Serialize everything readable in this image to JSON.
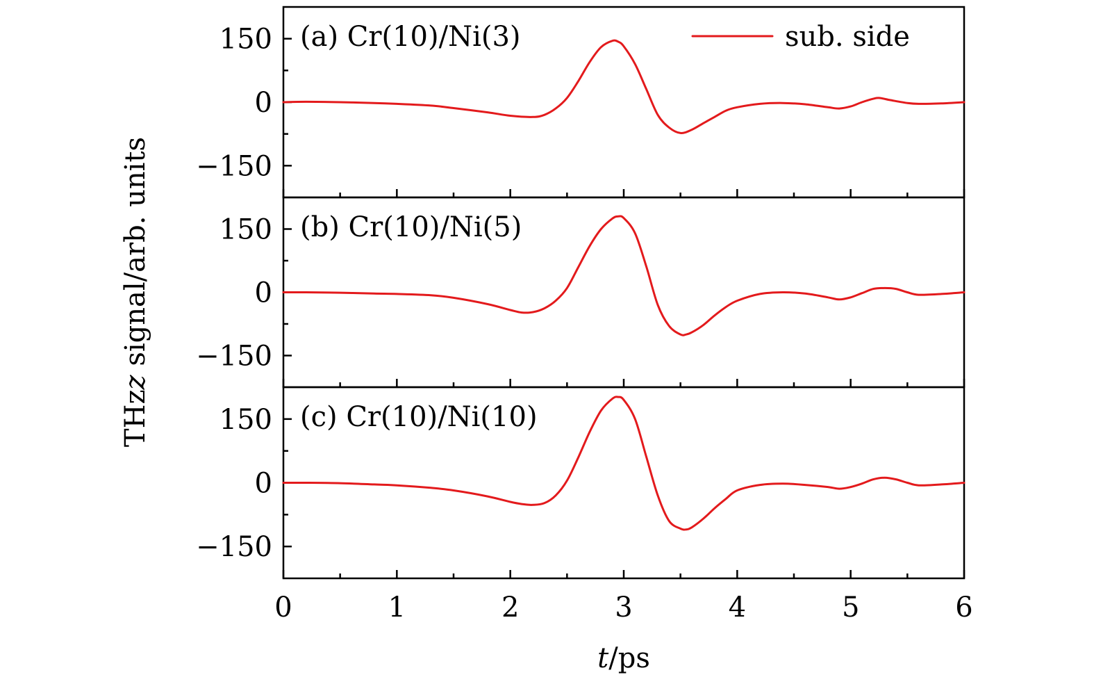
{
  "chart_data": {
    "type": "line",
    "xlabel_italic": "t",
    "xlabel_unit": "/ps",
    "ylabel": "THz signal/arb. units",
    "ylabel_italic": "z",
    "xlim": [
      0,
      6
    ],
    "ylim": [
      -225,
      225
    ],
    "x_ticks": [
      0,
      1,
      2,
      3,
      4,
      5,
      6
    ],
    "x_minor_ticks": [
      0.5,
      1.5,
      2.5,
      3.5,
      4.5,
      5.5
    ],
    "x_tick_labels": [
      "0",
      "1",
      "2",
      "3",
      "4",
      "5",
      "6"
    ],
    "y_ticks": [
      -150,
      0,
      150
    ],
    "y_tick_labels": [
      "−150",
      "0",
      "150"
    ],
    "y_minor_ticks": [
      -75,
      75
    ],
    "legend": {
      "position": "top-right",
      "label": "sub. side",
      "color": "#e31a1c"
    },
    "panels": [
      {
        "label": "(a) Cr(10)/Ni(3)",
        "series": [
          {
            "color": "#e31a1c",
            "x": [
              0,
              0.2,
              0.5,
              0.8,
              1.0,
              1.3,
              1.5,
              1.8,
              2.0,
              2.2,
              2.3,
              2.4,
              2.5,
              2.6,
              2.7,
              2.8,
              2.9,
              2.95,
              3.0,
              3.1,
              3.2,
              3.3,
              3.4,
              3.5,
              3.6,
              3.7,
              3.8,
              3.9,
              4.0,
              4.2,
              4.4,
              4.6,
              4.8,
              4.9,
              5.0,
              5.1,
              5.2,
              5.25,
              5.35,
              5.5,
              5.6,
              5.8,
              6.0
            ],
            "y": [
              0,
              1,
              0,
              -2,
              -4,
              -8,
              -14,
              -24,
              -32,
              -35,
              -30,
              -15,
              10,
              50,
              95,
              130,
              145,
              143,
              132,
              90,
              30,
              -30,
              -60,
              -73,
              -65,
              -50,
              -35,
              -20,
              -12,
              -4,
              -2,
              -5,
              -12,
              -15,
              -10,
              0,
              8,
              10,
              5,
              -2,
              -4,
              -3,
              0
            ]
          }
        ]
      },
      {
        "label": "(b) Cr(10)/Ni(5)",
        "series": [
          {
            "color": "#e31a1c",
            "x": [
              0,
              0.2,
              0.5,
              0.8,
              1.0,
              1.3,
              1.5,
              1.8,
              2.0,
              2.1,
              2.2,
              2.3,
              2.4,
              2.5,
              2.6,
              2.7,
              2.8,
              2.9,
              2.95,
              3.0,
              3.1,
              3.2,
              3.3,
              3.4,
              3.5,
              3.55,
              3.6,
              3.7,
              3.8,
              3.9,
              4.0,
              4.2,
              4.4,
              4.6,
              4.8,
              4.9,
              5.0,
              5.1,
              5.2,
              5.3,
              5.4,
              5.5,
              5.6,
              5.8,
              6.0
            ],
            "y": [
              0,
              0,
              -1,
              -3,
              -4,
              -7,
              -13,
              -28,
              -42,
              -48,
              -47,
              -38,
              -20,
              10,
              60,
              110,
              150,
              175,
              180,
              176,
              140,
              60,
              -30,
              -80,
              -100,
              -100,
              -95,
              -78,
              -55,
              -35,
              -20,
              -4,
              0,
              -3,
              -12,
              -17,
              -12,
              -2,
              8,
              10,
              8,
              0,
              -6,
              -4,
              0
            ]
          }
        ]
      },
      {
        "label": "(c) Cr(10)/Ni(10)",
        "series": [
          {
            "color": "#e31a1c",
            "x": [
              0,
              0.2,
              0.5,
              0.8,
              1.0,
              1.3,
              1.5,
              1.8,
              2.0,
              2.1,
              2.2,
              2.3,
              2.4,
              2.5,
              2.6,
              2.7,
              2.8,
              2.9,
              2.95,
              3.0,
              3.1,
              3.2,
              3.3,
              3.4,
              3.5,
              3.55,
              3.6,
              3.7,
              3.8,
              3.9,
              4.0,
              4.2,
              4.4,
              4.6,
              4.8,
              4.9,
              5.0,
              5.1,
              5.2,
              5.3,
              5.4,
              5.5,
              5.6,
              5.8,
              6.0
            ],
            "y": [
              0,
              0,
              -1,
              -4,
              -6,
              -12,
              -18,
              -32,
              -45,
              -50,
              -52,
              -48,
              -30,
              5,
              60,
              120,
              170,
              198,
              202,
              195,
              150,
              60,
              -30,
              -90,
              -108,
              -110,
              -105,
              -85,
              -60,
              -38,
              -18,
              -5,
              -2,
              -5,
              -10,
              -14,
              -10,
              -2,
              8,
              12,
              8,
              0,
              -6,
              -4,
              0
            ]
          }
        ]
      }
    ]
  }
}
